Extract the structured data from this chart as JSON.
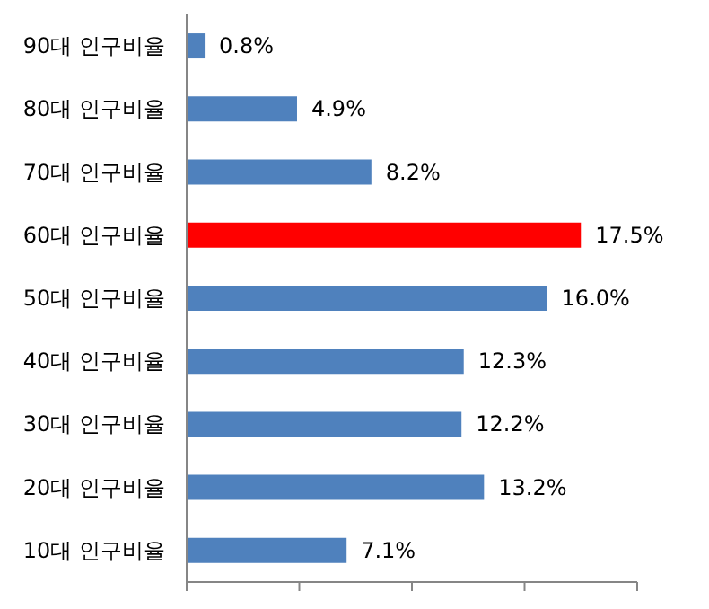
{
  "chart_data": {
    "type": "bar",
    "orientation": "horizontal",
    "categories": [
      "90대 인구비율",
      "80대 인구비율",
      "70대 인구비율",
      "60대 인구비율",
      "50대 인구비율",
      "40대 인구비율",
      "30대 인구비율",
      "20대 인구비율",
      "10대 인구비율"
    ],
    "values": [
      0.8,
      4.9,
      8.2,
      17.5,
      16.0,
      12.3,
      12.2,
      13.2,
      7.1
    ],
    "colors": [
      "#4f81bd",
      "#4f81bd",
      "#4f81bd",
      "#ff0000",
      "#4f81bd",
      "#4f81bd",
      "#4f81bd",
      "#4f81bd",
      "#4f81bd"
    ],
    "value_labels": [
      "0.8%",
      "4.9%",
      "8.2%",
      "17.5%",
      "16.0%",
      "12.3%",
      "12.2%",
      "13.2%",
      "7.1%"
    ],
    "xlim": [
      0,
      20
    ],
    "xticks": [
      {
        "value": 0,
        "label": null
      },
      {
        "value": 5,
        "label": null
      },
      {
        "value": 10,
        "label": null
      },
      {
        "value": 15,
        "label": null
      },
      {
        "value": 20,
        "label": null
      }
    ],
    "grid": false
  }
}
